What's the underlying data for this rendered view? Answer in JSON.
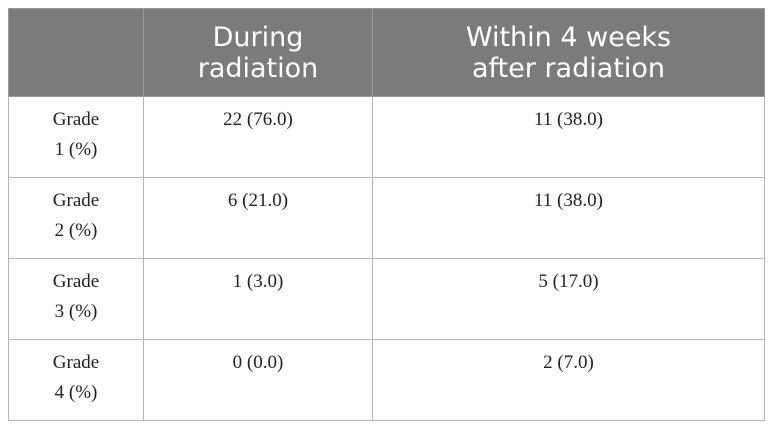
{
  "table": {
    "headers": [
      {
        "lines": [
          ""
        ]
      },
      {
        "lines": [
          "During",
          "radiation"
        ]
      },
      {
        "lines": [
          "Within 4 weeks",
          "after radiation"
        ]
      }
    ],
    "rows": [
      {
        "label_lines": [
          "Grade",
          "1 (%)"
        ],
        "during": "22 (76.0)",
        "within": "11 (38.0)"
      },
      {
        "label_lines": [
          "Grade",
          "2 (%)"
        ],
        "during": "6 (21.0)",
        "within": "11 (38.0)"
      },
      {
        "label_lines": [
          "Grade",
          "3 (%)"
        ],
        "during": "1 (3.0)",
        "within": "5 (17.0)"
      },
      {
        "label_lines": [
          "Grade",
          "4 (%)"
        ],
        "during": "0 (0.0)",
        "within": "2 (7.0)"
      }
    ]
  }
}
